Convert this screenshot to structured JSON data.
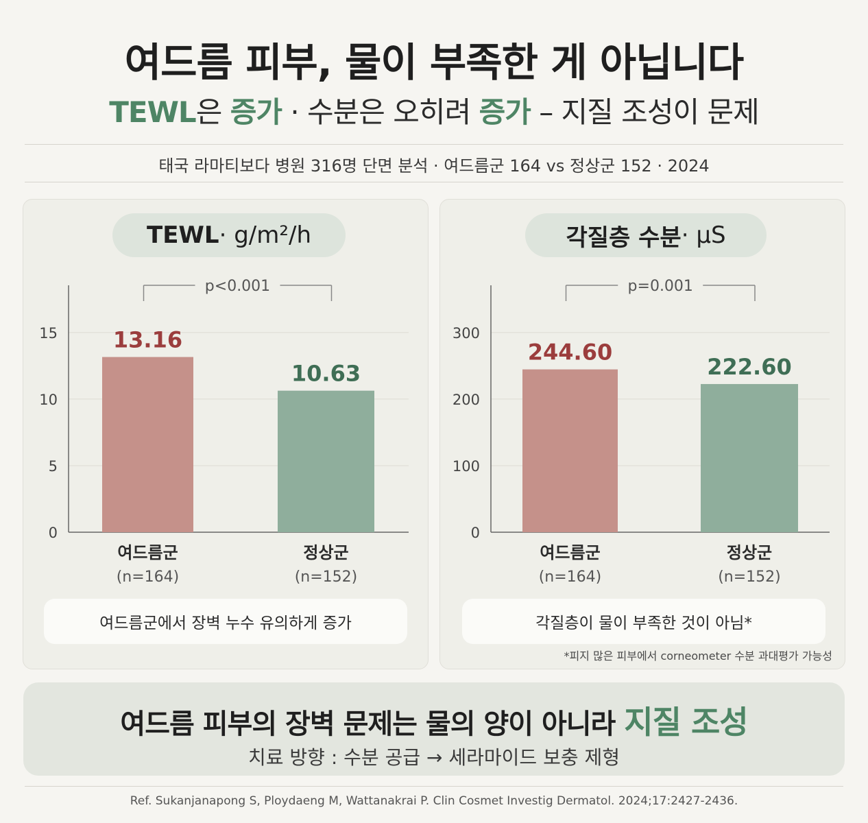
{
  "header": {
    "title": "여드름 피부, 물이 부족한 게 아닙니다",
    "subtitle_parts": [
      "TEWL",
      "은 ",
      "증가",
      " · 수분은 오히려 ",
      "증가",
      " – 지질 조성이 문제"
    ],
    "study_line": "태국 라마티보다 병원 316명 단면 분석 · 여드름군 164 vs 정상군 152 · 2024"
  },
  "colors": {
    "acne": "#c5918a",
    "normal": "#8fae9c",
    "acne_label": "#9b3d3d",
    "normal_label": "#3f6e55",
    "accent": "#4e8565"
  },
  "panels": [
    {
      "pill_bold": "TEWL",
      "pill_rest": " · g/m²/h",
      "note": "여드름군에서 장벽 누수 유의하게 증가",
      "footnote": ""
    },
    {
      "pill_bold": "각질층 수분",
      "pill_rest": " · µS",
      "note": "각질층이 물이 부족한 것이 아님*",
      "footnote": "*피지 많은 피부에서 corneometer 수분 과대평가 가능성"
    }
  ],
  "chart_data": [
    {
      "type": "bar",
      "title": "TEWL · g/m²/h",
      "categories": [
        "여드름군",
        "정상군"
      ],
      "category_sublabels": [
        "(n=164)",
        "(n=152)"
      ],
      "values": [
        13.16,
        10.63
      ],
      "value_labels": [
        "13.16",
        "10.63"
      ],
      "ylim": [
        0,
        17
      ],
      "yticks": [
        0,
        5,
        10,
        15
      ],
      "grid": true,
      "annotation": "p<0.001"
    },
    {
      "type": "bar",
      "title": "각질층 수분 · µS",
      "categories": [
        "여드름군",
        "정상군"
      ],
      "category_sublabels": [
        "(n=164)",
        "(n=152)"
      ],
      "values": [
        244.6,
        222.6
      ],
      "value_labels": [
        "244.60",
        "222.60"
      ],
      "ylim": [
        0,
        340
      ],
      "yticks": [
        0,
        100,
        200,
        300
      ],
      "grid": true,
      "annotation": "p=0.001"
    }
  ],
  "conclusion": {
    "main_prefix": "여드름 피부의 장벽 문제는 물의 양이 아니라 ",
    "main_highlight": "지질 조성",
    "sub": "치료 방향 : 수분 공급 → 세라마이드 보충 제형"
  },
  "reference": "Ref.   Sukanjanapong S, Ploydaeng M, Wattanakrai P. Clin Cosmet Investig Dermatol. 2024;17:2427-2436."
}
